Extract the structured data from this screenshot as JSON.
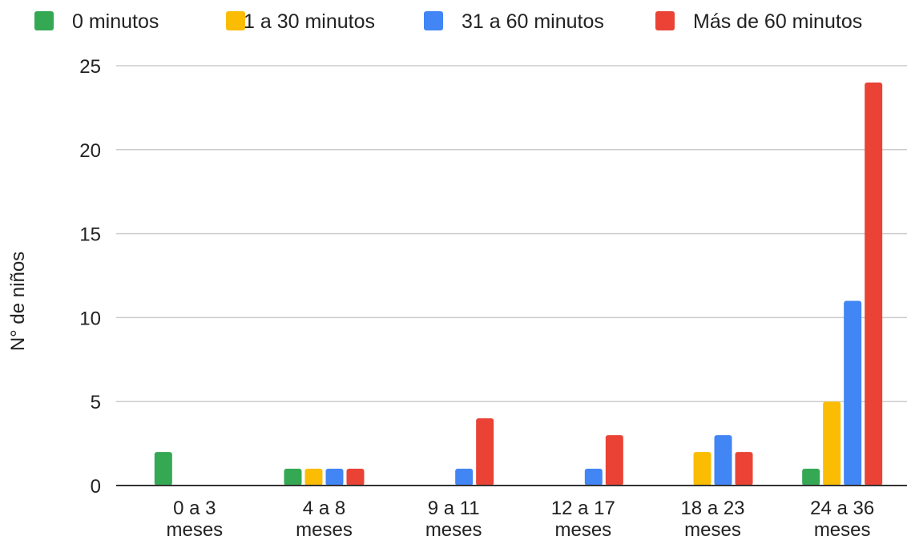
{
  "chart_data": {
    "type": "bar",
    "title": "",
    "xlabel": "",
    "ylabel": "N° de niños",
    "ylim": [
      0,
      25
    ],
    "yticks": [
      0,
      5,
      10,
      15,
      20,
      25
    ],
    "grid": true,
    "legend_position": "top",
    "categories": [
      [
        "0 a 3",
        "meses"
      ],
      [
        "4 a 8",
        "meses"
      ],
      [
        "9 a 11",
        "meses"
      ],
      [
        "12 a 17",
        "meses"
      ],
      [
        "18 a 23",
        "meses"
      ],
      [
        "24 a 36",
        "meses"
      ]
    ],
    "series": [
      {
        "name": "0 minutos",
        "color": "#34a853",
        "values": [
          2,
          1,
          0,
          0,
          0,
          1
        ]
      },
      {
        "name": "1 a 30 minutos",
        "color": "#fbbc04",
        "values": [
          0,
          1,
          0,
          0,
          2,
          5
        ]
      },
      {
        "name": "31 a 60 minutos",
        "color": "#4285f4",
        "values": [
          0,
          1,
          1,
          1,
          3,
          11
        ]
      },
      {
        "name": "Más de 60 minutos",
        "color": "#ea4335",
        "values": [
          0,
          1,
          4,
          3,
          2,
          24
        ]
      }
    ]
  }
}
